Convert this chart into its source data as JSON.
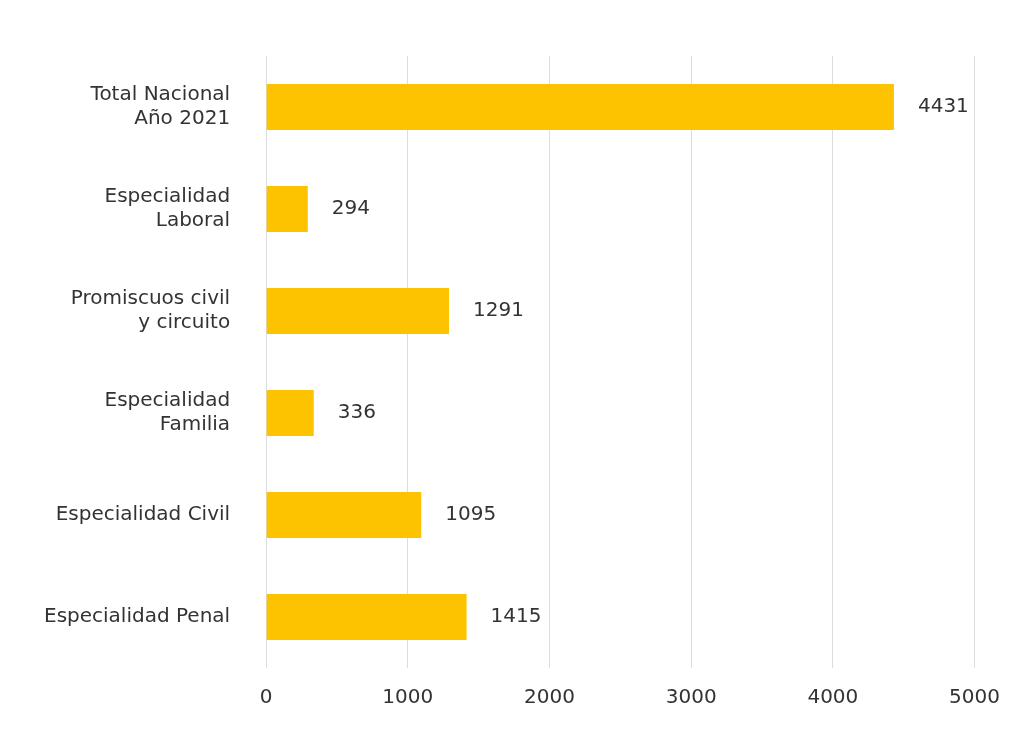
{
  "chart_data": {
    "type": "bar",
    "orientation": "horizontal",
    "categories": [
      "Total Nacional\nAño 2021",
      "Especialidad\nLaboral",
      "Promiscuos civil\ny circuito",
      "Especialidad\nFamilia",
      "Especialidad Civil",
      "Especialidad Penal"
    ],
    "values": [
      4431,
      294,
      1291,
      336,
      1095,
      1415
    ],
    "color": "#fdc300",
    "xlim": [
      0,
      5000
    ],
    "xticks": [
      0,
      1000,
      2000,
      3000,
      4000,
      5000
    ],
    "grid": "x",
    "data_labels": true,
    "legend": false
  }
}
